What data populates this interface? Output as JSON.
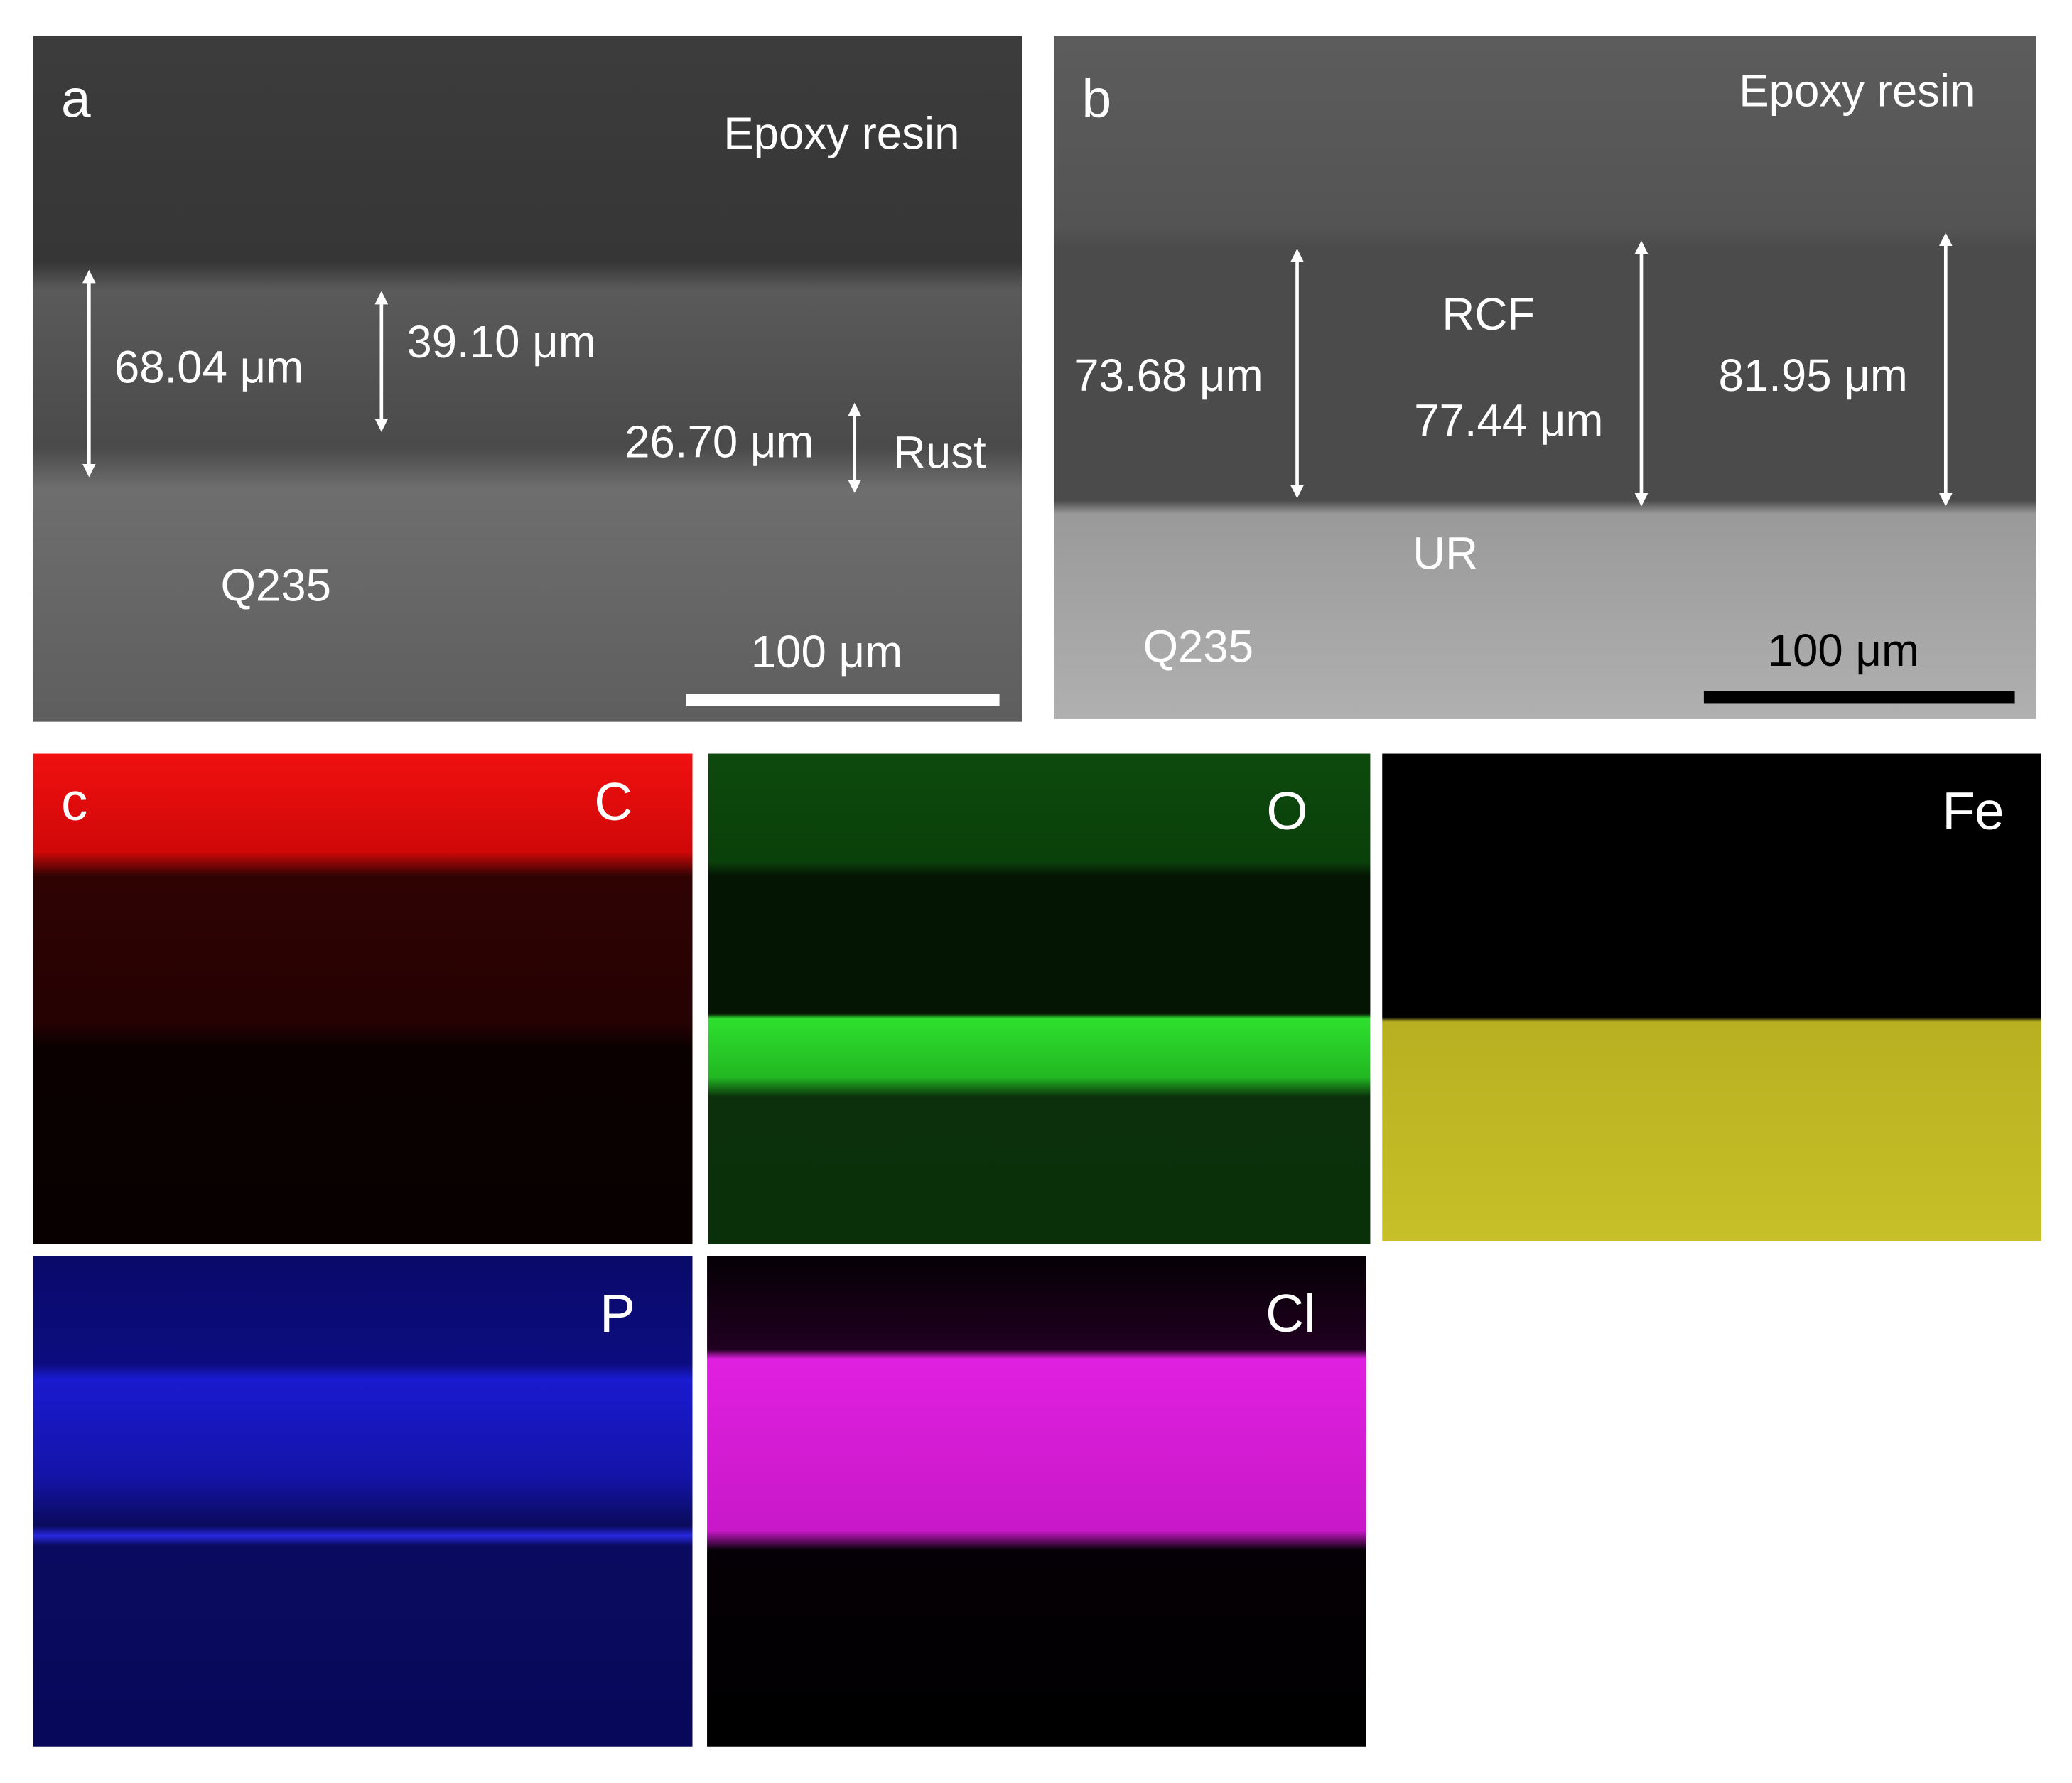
{
  "panel_a": {
    "label": "a",
    "top_layer": "Epoxy resin",
    "measurements": [
      "68.04 μm",
      "39.10 μm",
      "26.70 μm"
    ],
    "rust": "Rust",
    "substrate": "Q235",
    "scale_bar": "100 μm"
  },
  "panel_b": {
    "label": "b",
    "top_layer": "Epoxy resin",
    "coating": "RCF",
    "measurements": [
      "73.68 μm",
      "77.44 μm",
      "81.95 μm"
    ],
    "under_rust": "UR",
    "substrate": "Q235",
    "scale_bar": "100 μm"
  },
  "panel_c": {
    "label": "c",
    "maps": [
      "C",
      "O",
      "Fe",
      "P",
      "Cl"
    ]
  }
}
